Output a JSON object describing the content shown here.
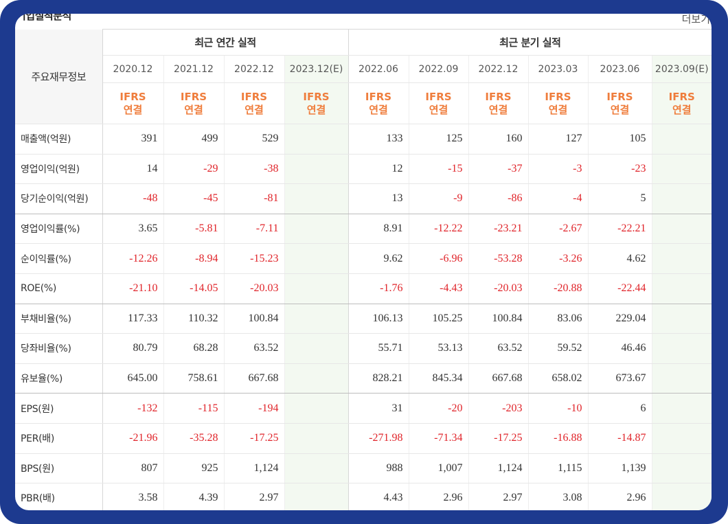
{
  "section_title": "기업실적분석",
  "more_link": "더보기",
  "header": {
    "row_label": "주요재무정보",
    "annual_group": "최근 연간 실적",
    "quarter_group": "최근 분기 실적",
    "periods": [
      "2020.12",
      "2021.12",
      "2022.12",
      "2023.12(E)",
      "2022.06",
      "2022.09",
      "2022.12",
      "2023.03",
      "2023.06",
      "2023.09(E)"
    ],
    "ifrs_line1": "IFRS",
    "ifrs_line2": "연결"
  },
  "rows": [
    {
      "label": "매출액(억원)",
      "values": [
        "391",
        "499",
        "529",
        "",
        "133",
        "125",
        "160",
        "127",
        "105",
        ""
      ]
    },
    {
      "label": "영업이익(억원)",
      "values": [
        "14",
        "-29",
        "-38",
        "",
        "12",
        "-15",
        "-37",
        "-3",
        "-23",
        ""
      ]
    },
    {
      "label": "당기순이익(억원)",
      "values": [
        "-48",
        "-45",
        "-81",
        "",
        "13",
        "-9",
        "-86",
        "-4",
        "5",
        ""
      ]
    },
    {
      "label": "영업이익률(%)",
      "values": [
        "3.65",
        "-5.81",
        "-7.11",
        "",
        "8.91",
        "-12.22",
        "-23.21",
        "-2.67",
        "-22.21",
        ""
      ]
    },
    {
      "label": "순이익률(%)",
      "values": [
        "-12.26",
        "-8.94",
        "-15.23",
        "",
        "9.62",
        "-6.96",
        "-53.28",
        "-3.26",
        "4.62",
        ""
      ]
    },
    {
      "label": "ROE(%)",
      "values": [
        "-21.10",
        "-14.05",
        "-20.03",
        "",
        "-1.76",
        "-4.43",
        "-20.03",
        "-20.88",
        "-22.44",
        ""
      ]
    },
    {
      "label": "부채비율(%)",
      "values": [
        "117.33",
        "110.32",
        "100.84",
        "",
        "106.13",
        "105.25",
        "100.84",
        "83.06",
        "229.04",
        ""
      ]
    },
    {
      "label": "당좌비율(%)",
      "values": [
        "80.79",
        "68.28",
        "63.52",
        "",
        "55.71",
        "53.13",
        "63.52",
        "59.52",
        "46.46",
        ""
      ]
    },
    {
      "label": "유보율(%)",
      "values": [
        "645.00",
        "758.61",
        "667.68",
        "",
        "828.21",
        "845.34",
        "667.68",
        "658.02",
        "673.67",
        ""
      ]
    },
    {
      "label": "EPS(원)",
      "values": [
        "-132",
        "-115",
        "-194",
        "",
        "31",
        "-20",
        "-203",
        "-10",
        "6",
        ""
      ]
    },
    {
      "label": "PER(배)",
      "values": [
        "-21.96",
        "-35.28",
        "-17.25",
        "",
        "-271.98",
        "-71.34",
        "-17.25",
        "-16.88",
        "-14.87",
        ""
      ]
    },
    {
      "label": "BPS(원)",
      "values": [
        "807",
        "925",
        "1,124",
        "",
        "988",
        "1,007",
        "1,124",
        "1,115",
        "1,139",
        ""
      ]
    },
    {
      "label": "PBR(배)",
      "values": [
        "3.58",
        "4.39",
        "2.97",
        "",
        "4.43",
        "2.96",
        "2.97",
        "3.08",
        "2.96",
        ""
      ]
    }
  ],
  "colors": {
    "frame": "#1d3a8f",
    "negative": "#e0242a",
    "ifrs": "#ef7d3c",
    "estimate_bg": "#f3f9f1"
  }
}
